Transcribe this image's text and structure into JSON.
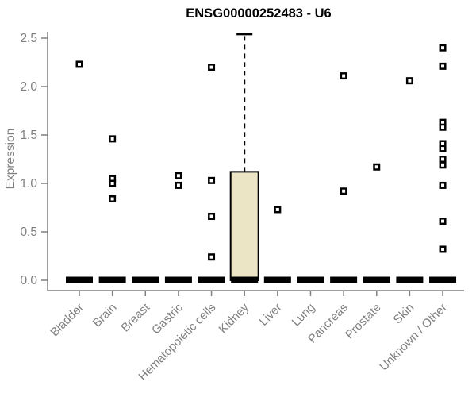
{
  "title": "ENSG00000252483 - U6",
  "colors": {
    "title_text": "#000000",
    "axis_line": "#7f7f7f",
    "tick_label": "#7f7f7f",
    "axis_title": "#7f7f7f",
    "box_fill": "#ece5c5",
    "box_stroke": "#000000",
    "median_bar": "#000000",
    "whisker": "#000000",
    "outlier": "#000000",
    "background": "#ffffff"
  },
  "chart_data": {
    "type": "boxplot",
    "title": "ENSG00000252483 - U6",
    "xlabel": "",
    "ylabel": "Expression",
    "ylim": [
      0.0,
      2.5
    ],
    "yticks": [
      "0.0",
      "0.5",
      "1.0",
      "1.5",
      "2.0",
      "2.5"
    ],
    "ytick_values": [
      0.0,
      0.5,
      1.0,
      1.5,
      2.0,
      2.5
    ],
    "grid": "off",
    "legend": "none",
    "categories": [
      "Bladder",
      "Brain",
      "Breast",
      "Gastric",
      "Hematopoietic cells",
      "Kidney",
      "Liver",
      "Lung",
      "Pancreas",
      "Prostate",
      "Skin",
      "Unknown / Other"
    ],
    "series": [
      {
        "category": "Bladder",
        "median": 0,
        "q1": 0,
        "q3": 0,
        "whisker_low": 0,
        "whisker_high": 0,
        "outliers": [
          2.23
        ]
      },
      {
        "category": "Brain",
        "median": 0,
        "q1": 0,
        "q3": 0,
        "whisker_low": 0,
        "whisker_high": 0,
        "outliers": [
          1.46,
          1.05,
          1.0,
          0.84
        ]
      },
      {
        "category": "Breast",
        "median": 0,
        "q1": 0,
        "q3": 0,
        "whisker_low": 0,
        "whisker_high": 0,
        "outliers": []
      },
      {
        "category": "Gastric",
        "median": 0,
        "q1": 0,
        "q3": 0,
        "whisker_low": 0,
        "whisker_high": 0,
        "outliers": [
          1.08,
          0.98
        ]
      },
      {
        "category": "Hematopoietic cells",
        "median": 0,
        "q1": 0,
        "q3": 0,
        "whisker_low": 0,
        "whisker_high": 0,
        "outliers": [
          2.2,
          1.03,
          0.66,
          0.24
        ]
      },
      {
        "category": "Kidney",
        "median": 0,
        "q1": 0,
        "q3": 1.12,
        "whisker_low": 0,
        "whisker_high": 2.54,
        "outliers": []
      },
      {
        "category": "Liver",
        "median": 0,
        "q1": 0,
        "q3": 0,
        "whisker_low": 0,
        "whisker_high": 0,
        "outliers": [
          0.73
        ]
      },
      {
        "category": "Lung",
        "median": 0,
        "q1": 0,
        "q3": 0,
        "whisker_low": 0,
        "whisker_high": 0,
        "outliers": []
      },
      {
        "category": "Pancreas",
        "median": 0,
        "q1": 0,
        "q3": 0,
        "whisker_low": 0,
        "whisker_high": 0,
        "outliers": [
          2.11,
          0.92
        ]
      },
      {
        "category": "Prostate",
        "median": 0,
        "q1": 0,
        "q3": 0,
        "whisker_low": 0,
        "whisker_high": 0,
        "outliers": [
          1.17
        ]
      },
      {
        "category": "Skin",
        "median": 0,
        "q1": 0,
        "q3": 0,
        "whisker_low": 0,
        "whisker_high": 0,
        "outliers": [
          2.06
        ]
      },
      {
        "category": "Unknown / Other",
        "median": 0,
        "q1": 0,
        "q3": 0,
        "whisker_low": 0,
        "whisker_high": 0,
        "outliers": [
          2.4,
          2.21,
          1.63,
          1.58,
          1.41,
          1.36,
          1.25,
          1.19,
          0.98,
          0.61,
          0.32
        ]
      }
    ]
  }
}
